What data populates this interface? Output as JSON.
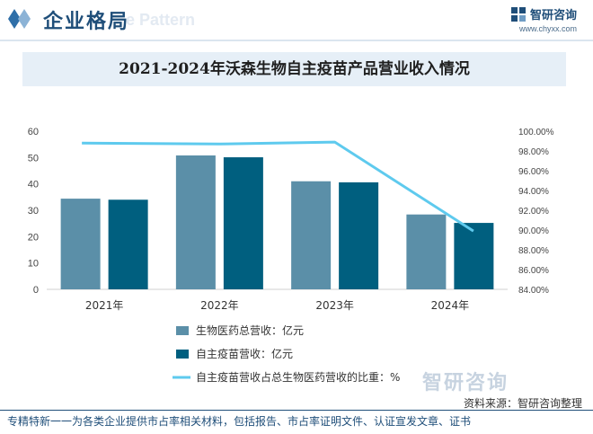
{
  "header": {
    "title": "企业格局",
    "bg_text": "e Pattern"
  },
  "brand": {
    "name": "智研咨询",
    "url": "www.chyxx.com"
  },
  "watermark": "智研咨询",
  "chart_data": {
    "type": "bar",
    "title": "2021-2024年沃森生物自主疫苗产品营业收入情况",
    "categories": [
      "2021年",
      "2022年",
      "2023年",
      "2024年"
    ],
    "series": [
      {
        "name": "生物医药总营收：亿元",
        "kind": "bar",
        "axis": "left",
        "color": "#5b8fa8",
        "values": [
          34.4,
          50.8,
          41.0,
          28.4
        ]
      },
      {
        "name": "自主疫苗营收：亿元",
        "kind": "bar",
        "axis": "left",
        "color": "#005f7f",
        "values": [
          34.0,
          50.1,
          40.6,
          25.2
        ]
      },
      {
        "name": "自主疫苗营收占总生物医药营收的比重：%",
        "kind": "line",
        "axis": "right",
        "color": "#5ecaee",
        "values": [
          98.8,
          98.7,
          98.9,
          89.9
        ]
      }
    ],
    "y_left": {
      "min": 0,
      "max": 60,
      "step": 10,
      "ticks": [
        "0",
        "10",
        "20",
        "30",
        "40",
        "50",
        "60"
      ]
    },
    "y_right": {
      "min": 84,
      "max": 100,
      "step": 2,
      "ticks": [
        "84.00%",
        "86.00%",
        "88.00%",
        "90.00%",
        "92.00%",
        "94.00%",
        "96.00%",
        "98.00%",
        "100.00%"
      ]
    },
    "grid": false,
    "legend_position": "bottom"
  },
  "source": "资料来源：智研咨询整理",
  "footer": "专精特新一一为各类企业提供市占率相关材料，包括报告、市占率证明文件、认证宣发文章、证书"
}
